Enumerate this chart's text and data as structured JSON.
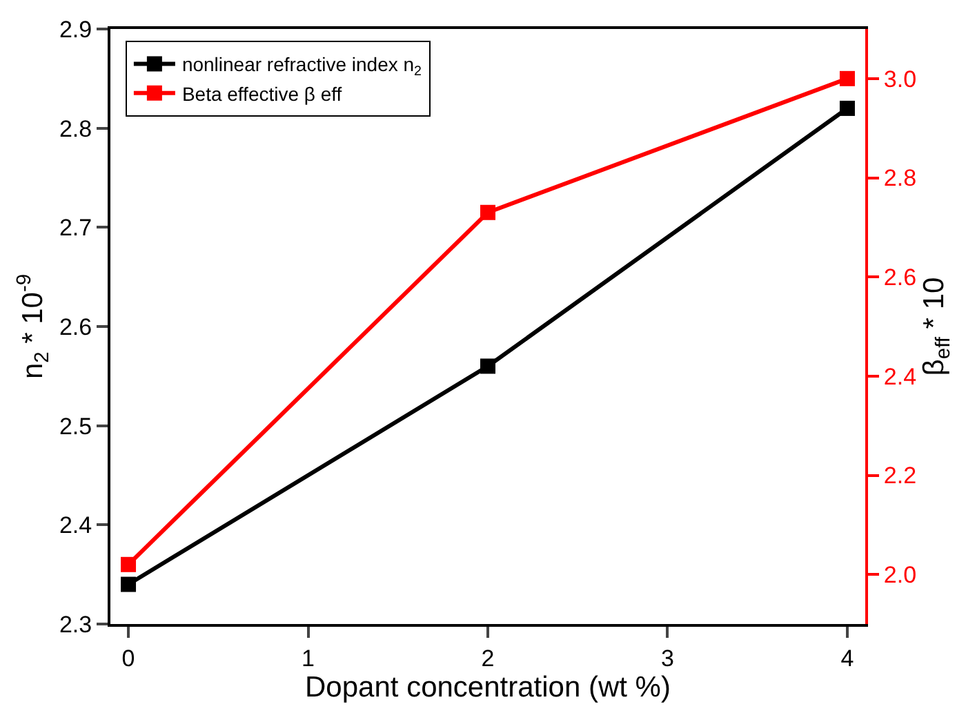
{
  "chart_data": {
    "type": "line",
    "xlabel": "Dopant concentration (wt %)",
    "ylabel": "n$_{2}$ * 10$^{-9}$",
    "y2label": "β$_{eff}$ * 10",
    "x": [
      0,
      2,
      4
    ],
    "series": [
      {
        "name": "nonlinear refractive index n$_{2}$",
        "color": "#000000",
        "values": [
          2.34,
          2.56,
          2.82
        ]
      },
      {
        "name": "Beta effective β eff",
        "color": "#ff0000",
        "values": [
          2.02,
          2.73,
          3.0
        ],
        "axis": "y2"
      }
    ],
    "xlim": [
      -0.1,
      4.1
    ],
    "xticks": [
      0,
      1,
      2,
      3,
      4
    ],
    "ylim": [
      2.3,
      2.9
    ],
    "yticks": [
      2.3,
      2.4,
      2.5,
      2.6,
      2.7,
      2.8,
      2.9
    ],
    "y2lim": [
      1.9,
      3.1
    ],
    "y2ticks": [
      {
        "value": 2,
        "label": "2.0"
      },
      2.2,
      2.4,
      2.6,
      2.8,
      {
        "value": 3,
        "label": "3.0"
      }
    ],
    "marker": "square",
    "line_style": "solid",
    "legend": "top left"
  }
}
